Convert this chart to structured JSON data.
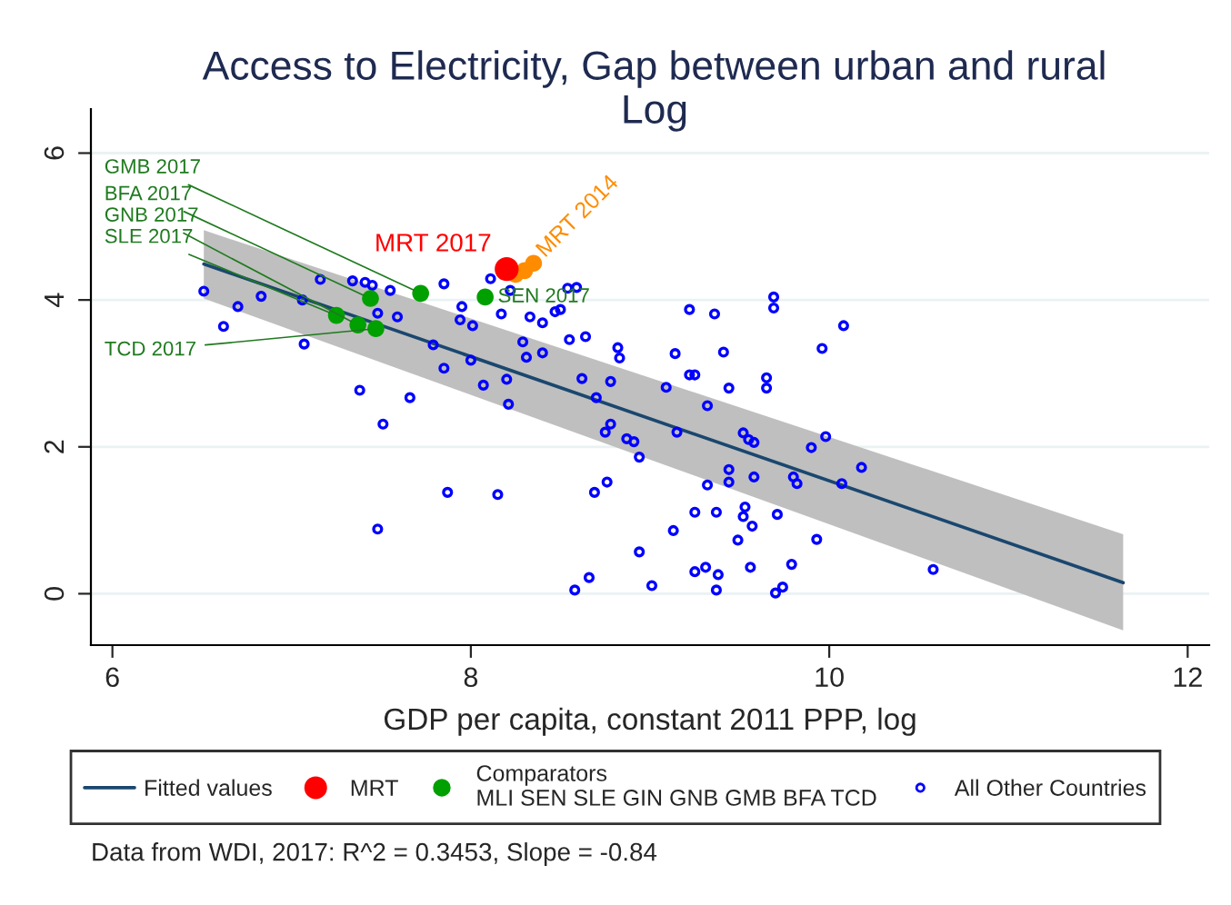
{
  "chart_data": {
    "type": "scatter",
    "title": "Access to Electricity, Gap between urban and rural",
    "subtitle": "Log",
    "xlabel": "GDP per capita, constant 2011 PPP, log",
    "xlim": [
      5.88,
      12.12
    ],
    "xticks": [
      6,
      8,
      10,
      12
    ],
    "ylim": [
      -0.7,
      6.6
    ],
    "yticks": [
      0,
      2,
      4,
      6
    ],
    "grid": "y",
    "legend": "bottom",
    "annotations": [
      "Data from WDI, 2017: R^2 = 0.3453, Slope = -0.84"
    ],
    "series": [
      {
        "type": "line",
        "name": "Fitted values",
        "color": "#1a476f",
        "x": [
          6.51,
          11.64
        ],
        "values": [
          4.49,
          0.15
        ],
        "lower": [
          4.02,
          -0.5
        ],
        "upper": [
          4.95,
          0.81
        ]
      },
      {
        "name": "MRT",
        "color": "#ff0000",
        "x": [
          8.2
        ],
        "values": [
          4.42
        ],
        "value_labels": [
          "MRT 2017"
        ]
      },
      {
        "color": "#ff8c00",
        "x": [
          8.25,
          8.3,
          8.35
        ],
        "values": [
          4.35,
          4.4,
          4.5
        ],
        "value_labels": [
          "MRT 2014",
          null,
          null
        ]
      },
      {
        "name": "Comparators\nMLI SEN SLE GIN GNB GMB BFA TCD",
        "color": "#00a000",
        "x": [
          7.44,
          7.72,
          8.08,
          7.25,
          7.37,
          7.47
        ],
        "values": [
          4.02,
          4.09,
          4.04,
          3.79,
          3.66,
          3.61
        ],
        "value_labels": [
          "BFA 2017",
          "GMB 2017",
          "SEN 2017",
          "SLE 2017",
          "GNB 2017",
          "TCD 2017"
        ]
      },
      {
        "name": "All Other Countries",
        "color": "#0000ff",
        "marker": "circle",
        "x": [
          6.51,
          6.62,
          6.7,
          6.83,
          7.06,
          7.07,
          7.16,
          7.34,
          7.41,
          7.45,
          7.38,
          7.51,
          7.48,
          7.55,
          7.48,
          7.66,
          7.59,
          7.87,
          7.85,
          7.79,
          7.85,
          7.95,
          7.94,
          8.01,
          8.0,
          8.07,
          8.11,
          8.17,
          8.15,
          8.21,
          8.2,
          8.22,
          8.29,
          8.31,
          8.33,
          8.4,
          8.4,
          8.47,
          8.5,
          8.54,
          8.59,
          8.55,
          8.64,
          8.62,
          8.78,
          8.7,
          8.78,
          8.75,
          8.82,
          8.83,
          8.87,
          8.91,
          8.94,
          8.76,
          8.69,
          9.22,
          9.36,
          9.14,
          9.41,
          9.22,
          9.25,
          9.09,
          9.44,
          9.32,
          9.15,
          9.69,
          9.69,
          9.65,
          9.65,
          9.52,
          9.55,
          9.58,
          10.08,
          9.96,
          9.98,
          9.9,
          10.18,
          10.07,
          9.8,
          9.82,
          9.58,
          9.44,
          9.44,
          9.32,
          9.53,
          9.52,
          9.57,
          9.71,
          9.37,
          9.25,
          9.13,
          9.49,
          9.93,
          8.94,
          8.66,
          8.58,
          9.01,
          9.25,
          9.31,
          9.38,
          9.37,
          9.56,
          9.79,
          9.7,
          9.74,
          10.58
        ],
        "values": [
          4.12,
          3.64,
          3.91,
          4.05,
          4.0,
          3.4,
          4.28,
          4.26,
          4.24,
          4.2,
          2.77,
          2.31,
          0.88,
          4.13,
          3.82,
          2.67,
          3.77,
          1.38,
          4.22,
          3.39,
          3.07,
          3.91,
          3.73,
          3.65,
          3.18,
          2.84,
          4.29,
          3.81,
          1.35,
          2.58,
          2.92,
          4.13,
          3.43,
          3.22,
          3.77,
          3.69,
          3.28,
          3.84,
          3.87,
          4.16,
          4.17,
          3.46,
          3.5,
          2.93,
          2.89,
          2.67,
          2.31,
          2.2,
          3.35,
          3.21,
          2.11,
          2.07,
          1.86,
          1.52,
          1.38,
          3.87,
          3.81,
          3.27,
          3.29,
          2.98,
          2.98,
          2.81,
          2.8,
          2.56,
          2.2,
          4.04,
          3.89,
          2.94,
          2.8,
          2.19,
          2.1,
          2.06,
          3.65,
          3.34,
          2.14,
          1.99,
          1.72,
          1.5,
          1.59,
          1.5,
          1.59,
          1.69,
          1.52,
          1.48,
          1.18,
          1.05,
          0.92,
          1.08,
          1.11,
          1.11,
          0.86,
          0.73,
          0.74,
          0.57,
          0.22,
          0.05,
          0.11,
          0.3,
          0.36,
          0.26,
          0.05,
          0.36,
          0.4,
          0.01,
          0.09,
          0.33
        ]
      }
    ]
  }
}
